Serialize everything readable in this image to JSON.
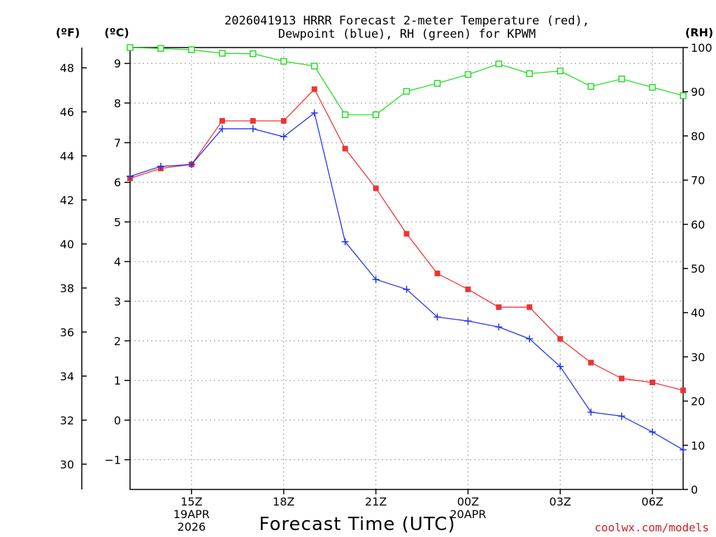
{
  "chart_data": {
    "type": "line",
    "title_line1": "2026041913 HRRR Forecast 2-meter Temperature (red),",
    "title_line2": "Dewpoint (blue), RH (green) for KPWM",
    "units": {
      "fahrenheit": "(ºF)",
      "celsius": "(ºC)",
      "rh": "(RH)"
    },
    "xlabel": "Forecast Time (UTC)",
    "credit": "coolwx.com/models",
    "x_hours": [
      13,
      14,
      15,
      16,
      17,
      18,
      19,
      20,
      21,
      22,
      23,
      24,
      25,
      26,
      27,
      28,
      29,
      30,
      31
    ],
    "x_range": [
      13,
      31
    ],
    "x_ticks": [
      {
        "hour": 15,
        "label": "15Z",
        "sub1": "19APR",
        "sub2": "2026"
      },
      {
        "hour": 18,
        "label": "18Z",
        "sub1": "",
        "sub2": ""
      },
      {
        "hour": 21,
        "label": "21Z",
        "sub1": "",
        "sub2": ""
      },
      {
        "hour": 24,
        "label": "00Z",
        "sub1": "20APR",
        "sub2": ""
      },
      {
        "hour": 27,
        "label": "03Z",
        "sub1": "",
        "sub2": ""
      },
      {
        "hour": 30,
        "label": "06Z",
        "sub1": "",
        "sub2": ""
      }
    ],
    "celsius_range": [
      -1.75,
      9.4
    ],
    "celsius_ticks": [
      -1,
      0,
      1,
      2,
      3,
      4,
      5,
      6,
      7,
      8,
      9
    ],
    "celsius_tick_labels": [
      "−1",
      "0",
      "1",
      "2",
      "3",
      "4",
      "5",
      "6",
      "7",
      "8",
      "9"
    ],
    "fahrenheit_ticks": [
      30,
      32,
      34,
      36,
      38,
      40,
      42,
      44,
      46,
      48
    ],
    "fahrenheit_tick_labels": [
      "30",
      "32",
      "34",
      "36",
      "38",
      "40",
      "42",
      "44",
      "46",
      "48"
    ],
    "rh_range": [
      0,
      100
    ],
    "rh_ticks": [
      0,
      10,
      20,
      30,
      40,
      50,
      60,
      70,
      80,
      90,
      100
    ],
    "rh_tick_labels": [
      "0",
      "10",
      "20",
      "30",
      "40",
      "50",
      "60",
      "70",
      "80",
      "90",
      "100"
    ],
    "series": [
      {
        "name": "Temperature",
        "color": "#ee3333",
        "marker": "square-filled",
        "values": [
          6.1,
          6.35,
          6.45,
          7.55,
          7.55,
          7.55,
          8.35,
          6.85,
          5.85,
          4.7,
          3.7,
          3.3,
          2.85,
          2.85,
          2.05,
          1.45,
          1.05,
          0.95,
          0.75
        ]
      },
      {
        "name": "Dewpoint",
        "color": "#2233ee",
        "marker": "plus",
        "values": [
          6.15,
          6.4,
          6.45,
          7.35,
          7.35,
          7.15,
          7.75,
          4.5,
          3.55,
          3.3,
          2.6,
          2.5,
          2.35,
          2.05,
          1.35,
          0.2,
          0.1,
          -0.3,
          -0.75
        ]
      },
      {
        "name": "RH",
        "color": "#22dd22",
        "marker": "square-open",
        "axis": "rh",
        "values": [
          100,
          99.8,
          99.5,
          98.7,
          98.6,
          96.9,
          95.8,
          84.8,
          84.8,
          90.1,
          91.9,
          93.9,
          96.3,
          94.1,
          94.7,
          91.2,
          92.9,
          91.0,
          89.1
        ]
      }
    ]
  }
}
